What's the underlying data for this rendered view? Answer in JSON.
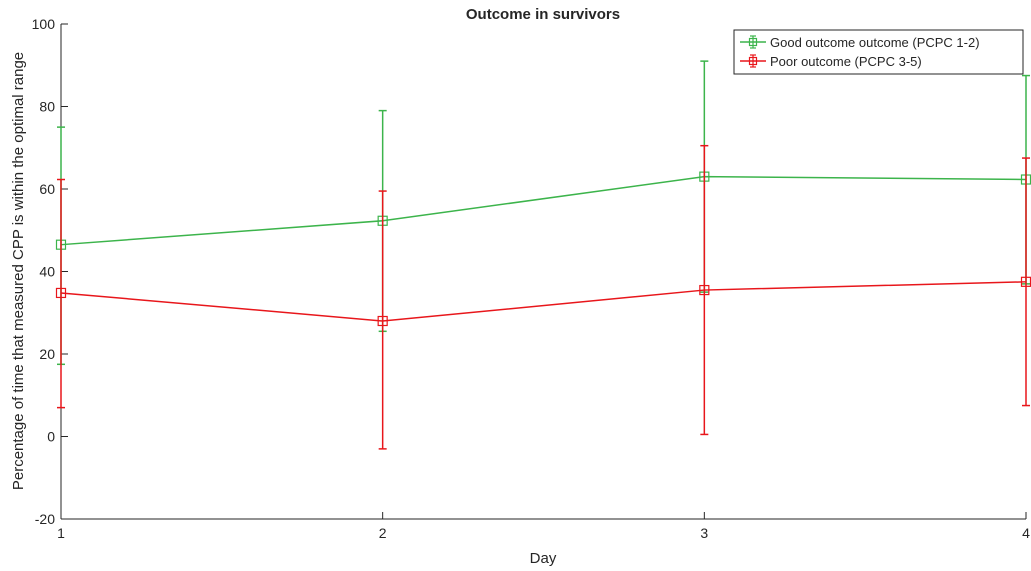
{
  "chart_data": {
    "type": "line",
    "title": "Outcome in survivors",
    "xlabel": "Day",
    "ylabel": "Percentage of time that measured CPP is within the optimal range",
    "x": [
      1,
      2,
      3,
      4
    ],
    "xlim": [
      1,
      4
    ],
    "ylim": [
      -20,
      100
    ],
    "yticks": [
      -20,
      0,
      20,
      40,
      60,
      80,
      100
    ],
    "xticks": [
      1,
      2,
      3,
      4
    ],
    "grid": false,
    "legend_position": "top-right",
    "series": [
      {
        "name": "Good outcome outcome (PCPC 1-2)",
        "color": "#3cb44b",
        "marker": "square",
        "values": [
          46.5,
          52.3,
          63,
          62.3
        ],
        "lower": [
          17.5,
          25.5,
          35,
          37
        ],
        "upper": [
          75,
          79,
          91,
          87.5
        ]
      },
      {
        "name": "Poor outcome (PCPC 3-5)",
        "color": "#e8161b",
        "marker": "square",
        "values": [
          34.8,
          28,
          35.5,
          37.5
        ],
        "lower": [
          7,
          -3,
          0.5,
          7.5
        ],
        "upper": [
          62.3,
          59.5,
          70.5,
          67.5
        ]
      }
    ]
  }
}
